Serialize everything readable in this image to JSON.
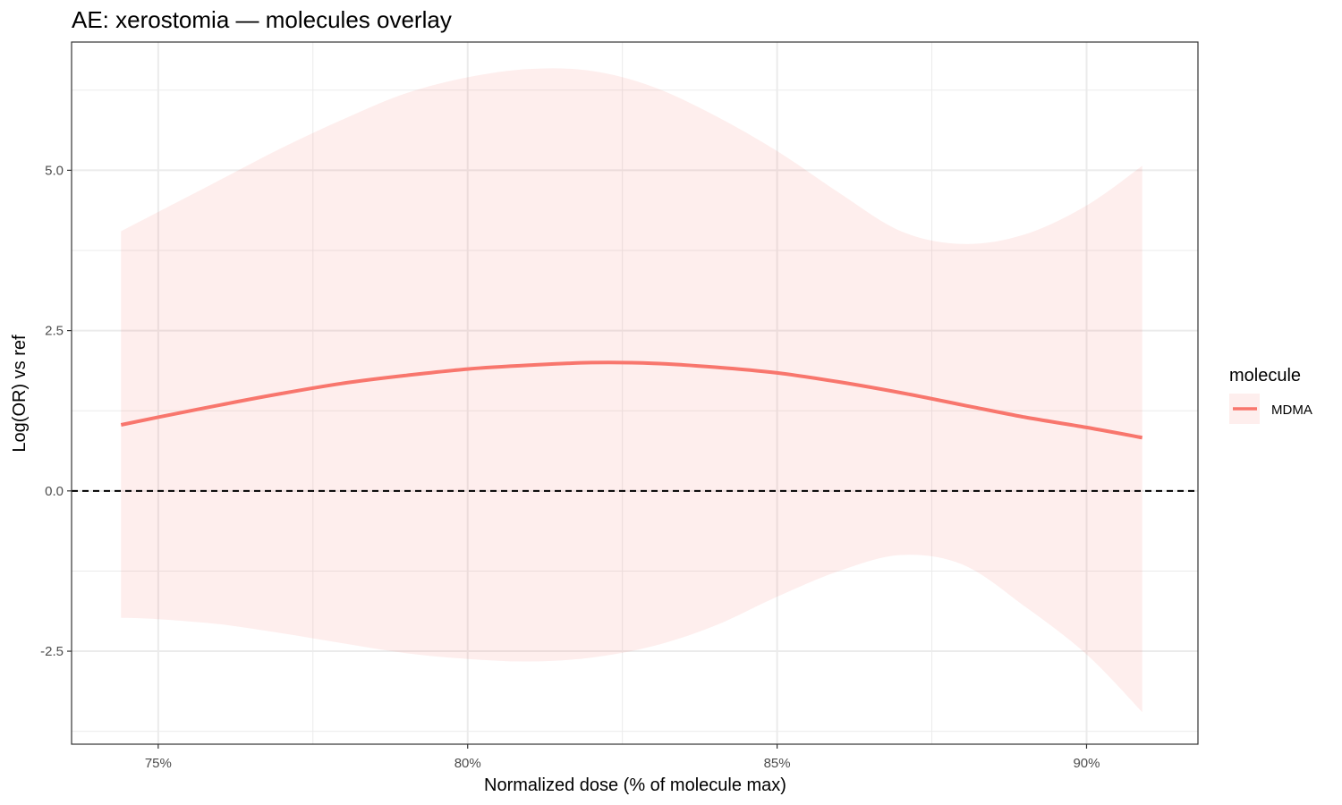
{
  "chart_data": {
    "type": "line",
    "title": "AE: xerostomia — molecules overlay",
    "xlabel": "Normalized dose (% of molecule max)",
    "ylabel": "Log(OR) vs ref",
    "xlim": [
      73.6,
      91.8
    ],
    "ylim": [
      -3.95,
      7.0
    ],
    "x_ticks": [
      {
        "value": 75,
        "label": "75%"
      },
      {
        "value": 80,
        "label": "80%"
      },
      {
        "value": 85,
        "label": "85%"
      },
      {
        "value": 90,
        "label": "90%"
      }
    ],
    "y_ticks": [
      {
        "value": -2.5,
        "label": "-2.5"
      },
      {
        "value": 0,
        "label": "0.0"
      },
      {
        "value": 2.5,
        "label": "2.5"
      },
      {
        "value": 5,
        "label": "5.0"
      }
    ],
    "reference_line": {
      "y": 0,
      "style": "dashed",
      "color": "#000000"
    },
    "grid": true,
    "legend": {
      "title": "molecule",
      "position": "right"
    },
    "series": [
      {
        "name": "MDMA",
        "color": "#F8766D",
        "band_color": "#F8766D",
        "x": [
          74.4,
          75.0,
          76.0,
          77.0,
          78.0,
          79.0,
          80.0,
          81.0,
          82.0,
          83.0,
          84.0,
          85.0,
          86.0,
          87.0,
          88.0,
          89.0,
          90.0,
          90.9
        ],
        "y": [
          1.03,
          1.15,
          1.34,
          1.52,
          1.68,
          1.8,
          1.9,
          1.96,
          2.0,
          1.99,
          1.93,
          1.84,
          1.7,
          1.53,
          1.34,
          1.15,
          0.99,
          0.83
        ],
        "upper": [
          4.05,
          4.35,
          4.85,
          5.35,
          5.8,
          6.2,
          6.45,
          6.58,
          6.55,
          6.3,
          5.85,
          5.3,
          4.65,
          4.05,
          3.85,
          4.0,
          4.45,
          5.07
        ],
        "lower": [
          -1.98,
          -2.0,
          -2.08,
          -2.22,
          -2.38,
          -2.53,
          -2.62,
          -2.66,
          -2.6,
          -2.42,
          -2.1,
          -1.65,
          -1.25,
          -1.0,
          -1.15,
          -1.8,
          -2.55,
          -3.45
        ]
      }
    ]
  }
}
